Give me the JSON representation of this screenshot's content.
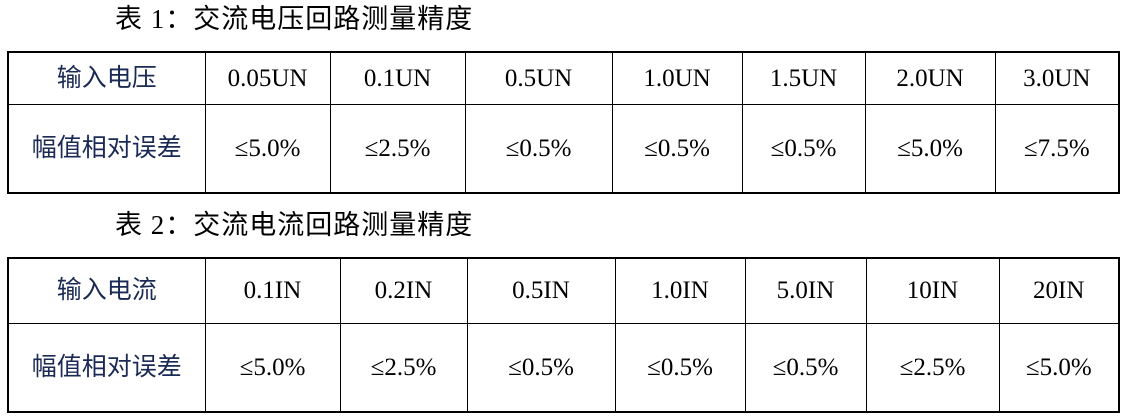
{
  "table1": {
    "caption": "表 1：交流电压回路测量精度",
    "header_label": "输入电压",
    "columns": [
      "0.05UN",
      "0.1UN",
      "0.5UN",
      "1.0UN",
      "1.5UN",
      "2.0UN",
      "3.0UN"
    ],
    "row_label": "幅值相对误差",
    "values": [
      "≤5.0%",
      "≤2.5%",
      "≤0.5%",
      "≤0.5%",
      "≤0.5%",
      "≤5.0%",
      "≤7.5%"
    ]
  },
  "table2": {
    "caption": "表 2：交流电流回路测量精度",
    "header_label": "输入电流",
    "columns": [
      "0.1IN",
      "0.2IN",
      "0.5IN",
      "1.0IN",
      "5.0IN",
      "10IN",
      "20IN"
    ],
    "row_label": "幅值相对误差",
    "values": [
      "≤5.0%",
      "≤2.5%",
      "≤0.5%",
      "≤0.5%",
      "≤0.5%",
      "≤2.5%",
      "≤5.0%"
    ]
  }
}
